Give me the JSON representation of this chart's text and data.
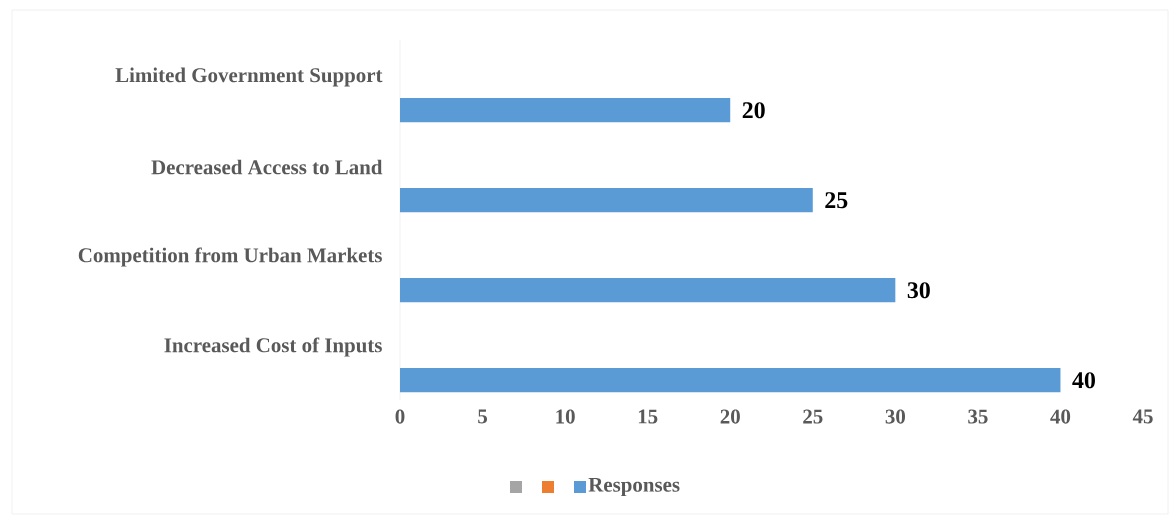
{
  "chart_data": {
    "type": "bar",
    "orientation": "horizontal",
    "categories": [
      "Limited Government Support",
      "Decreased Access to Land",
      "Competition from Urban Markets",
      "Increased Cost of Inputs"
    ],
    "series": [
      {
        "color": "#a5a5a5",
        "values": [
          null,
          null,
          null,
          null
        ]
      },
      {
        "color": "#ed7d31",
        "values": [
          null,
          null,
          null,
          null
        ]
      },
      {
        "name": "Responses",
        "color": "#5b9bd5",
        "values": [
          20,
          25,
          30,
          40
        ]
      }
    ],
    "xlim": [
      0,
      45
    ],
    "xticks": [
      0,
      5,
      10,
      15,
      20,
      25,
      30,
      35,
      40,
      45
    ],
    "data_labels": true,
    "legend": "bottom",
    "grid": false
  }
}
